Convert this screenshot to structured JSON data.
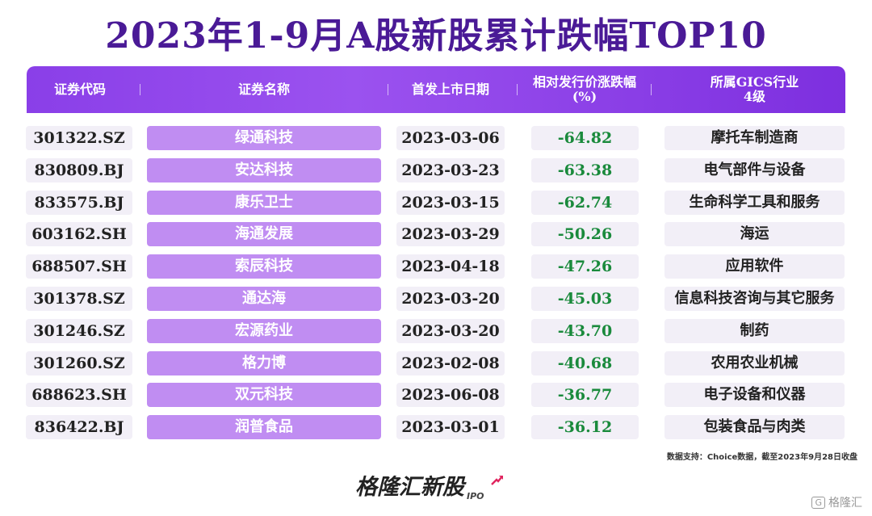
{
  "title": "2023年1-9月A股新股累计跌幅TOP10",
  "headers": {
    "code": "证券代码",
    "name": "证券名称",
    "date": "首发上市日期",
    "pct_line1": "相对发行价涨跌幅",
    "pct_line2": "(%)",
    "ind_line1": "所属GICS行业",
    "ind_line2": "4级"
  },
  "colors": {
    "title": "#4a1a96",
    "header": "#8a3fe8",
    "name_cell": "#c08df2",
    "negative_value": "#1a8a3c"
  },
  "chart_data": {
    "type": "table",
    "title": "2023年1-9月A股新股累计跌幅TOP10",
    "columns": [
      "证券代码",
      "证券名称",
      "首发上市日期",
      "相对发行价涨跌幅(%)",
      "所属GICS行业4级"
    ],
    "rows": [
      {
        "code": "301322.SZ",
        "name": "绿通科技",
        "date": "2023-03-06",
        "pct": "-64.82",
        "industry": "摩托车制造商"
      },
      {
        "code": "830809.BJ",
        "name": "安达科技",
        "date": "2023-03-23",
        "pct": "-63.38",
        "industry": "电气部件与设备"
      },
      {
        "code": "833575.BJ",
        "name": "康乐卫士",
        "date": "2023-03-15",
        "pct": "-62.74",
        "industry": "生命科学工具和服务"
      },
      {
        "code": "603162.SH",
        "name": "海通发展",
        "date": "2023-03-29",
        "pct": "-50.26",
        "industry": "海运"
      },
      {
        "code": "688507.SH",
        "name": "索辰科技",
        "date": "2023-04-18",
        "pct": "-47.26",
        "industry": "应用软件"
      },
      {
        "code": "301378.SZ",
        "name": "通达海",
        "date": "2023-03-20",
        "pct": "-45.03",
        "industry": "信息科技咨询与其它服务"
      },
      {
        "code": "301246.SZ",
        "name": "宏源药业",
        "date": "2023-03-20",
        "pct": "-43.70",
        "industry": "制药"
      },
      {
        "code": "301260.SZ",
        "name": "格力博",
        "date": "2023-02-08",
        "pct": "-40.68",
        "industry": "农用农业机械"
      },
      {
        "code": "688623.SH",
        "name": "双元科技",
        "date": "2023-06-08",
        "pct": "-36.77",
        "industry": "电子设备和仪器"
      },
      {
        "code": "836422.BJ",
        "name": "润普食品",
        "date": "2023-03-01",
        "pct": "-36.12",
        "industry": "包装食品与肉类"
      }
    ]
  },
  "source": "数据支持：Choice数据，截至2023年9月28日收盘",
  "brand": {
    "name": "格隆汇新股",
    "sub": "IPO",
    "arrow_icon": "rising-arrow-icon"
  },
  "watermark": {
    "box": "G",
    "text": "格隆汇"
  }
}
